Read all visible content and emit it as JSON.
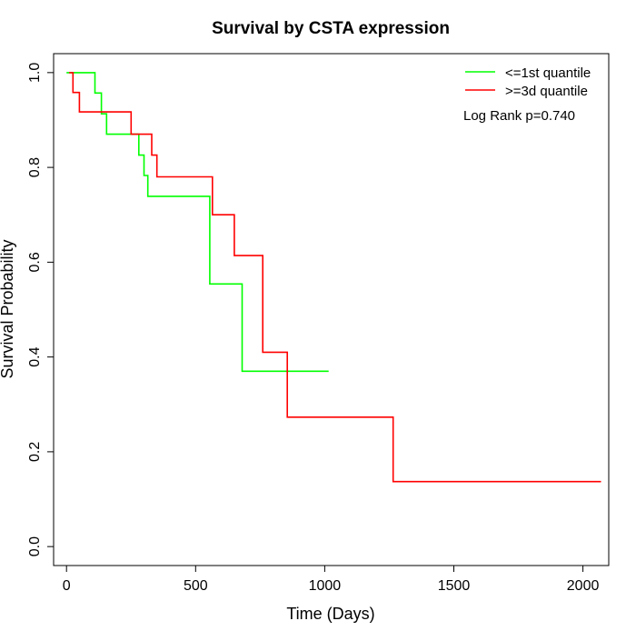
{
  "chart_data": {
    "type": "line",
    "title": "Survival by CSTA expression",
    "xlabel": "Time (Days)",
    "ylabel": "Survival Probability",
    "xlim": [
      -50,
      2100
    ],
    "ylim": [
      -0.04,
      1.04
    ],
    "x_ticks": [
      0,
      500,
      1000,
      1500,
      2000
    ],
    "x_tick_labels": [
      "0",
      "500",
      "1000",
      "1500",
      "2000"
    ],
    "y_ticks": [
      0.0,
      0.2,
      0.4,
      0.6,
      0.8,
      1.0
    ],
    "y_tick_labels": [
      "0.0",
      "0.2",
      "0.4",
      "0.6",
      "0.8",
      "1.0"
    ],
    "grid": false,
    "legend_position": "top-right",
    "annotation": "Log Rank p=0.740",
    "series": [
      {
        "name": "<=1st quantile",
        "color": "#00ff00",
        "step": true,
        "points": [
          [
            0,
            1.0
          ],
          [
            110,
            1.0
          ],
          [
            110,
            0.957
          ],
          [
            135,
            0.957
          ],
          [
            135,
            0.913
          ],
          [
            155,
            0.913
          ],
          [
            155,
            0.87
          ],
          [
            280,
            0.87
          ],
          [
            280,
            0.826
          ],
          [
            300,
            0.826
          ],
          [
            300,
            0.783
          ],
          [
            315,
            0.783
          ],
          [
            315,
            0.739
          ],
          [
            555,
            0.739
          ],
          [
            555,
            0.554
          ],
          [
            680,
            0.554
          ],
          [
            680,
            0.37
          ],
          [
            1015,
            0.37
          ]
        ]
      },
      {
        "name": ">=3d quantile",
        "color": "#ff0000",
        "step": true,
        "points": [
          [
            10,
            1.0
          ],
          [
            25,
            1.0
          ],
          [
            25,
            0.958
          ],
          [
            50,
            0.958
          ],
          [
            50,
            0.917
          ],
          [
            250,
            0.917
          ],
          [
            250,
            0.87
          ],
          [
            330,
            0.87
          ],
          [
            330,
            0.826
          ],
          [
            350,
            0.826
          ],
          [
            350,
            0.78
          ],
          [
            565,
            0.78
          ],
          [
            565,
            0.7
          ],
          [
            650,
            0.7
          ],
          [
            650,
            0.614
          ],
          [
            760,
            0.614
          ],
          [
            760,
            0.41
          ],
          [
            855,
            0.41
          ],
          [
            855,
            0.273
          ],
          [
            1265,
            0.273
          ],
          [
            1265,
            0.137
          ],
          [
            2070,
            0.137
          ]
        ]
      }
    ]
  }
}
